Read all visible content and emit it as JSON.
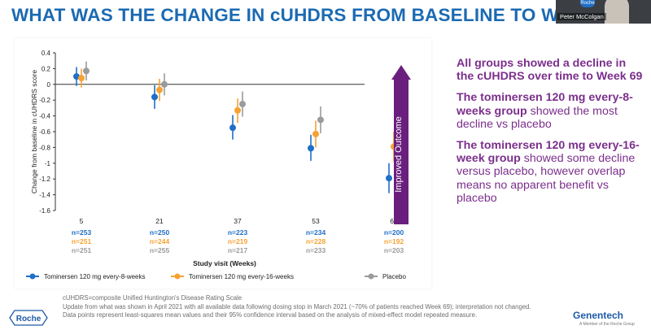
{
  "slide": {
    "title": "WHAT WAS THE CHANGE IN cUHDRS FROM BASELINE TO W"
  },
  "video": {
    "participant_name": "Peter McColgan",
    "badge": "Roche"
  },
  "chart_data": {
    "type": "scatter",
    "ylabel": "Change from baseline in cUHDRS score",
    "xlabel": "Study visit (Weeks)",
    "ylim": [
      -1.6,
      0.4
    ],
    "yticks": [
      "0.4",
      "0.2",
      "0",
      "-0.2",
      "-0.4",
      "-0.6",
      "-0.8",
      "-1",
      "-1.2",
      "-1.4",
      "-1.6"
    ],
    "categories": [
      "5",
      "21",
      "37",
      "53",
      "69"
    ],
    "series": [
      {
        "name": "Tominersen 120 mg every-8-weeks",
        "color": "#1f6fc7",
        "values": [
          0.1,
          -0.16,
          -0.55,
          -0.81,
          -1.19
        ],
        "ci_low": [
          -0.02,
          -0.31,
          -0.7,
          -0.97,
          -1.38
        ],
        "ci_high": [
          0.22,
          -0.01,
          -0.39,
          -0.64,
          -1.0
        ],
        "n": [
          "n=253",
          "n=250",
          "n=223",
          "n=234",
          "n=200"
        ]
      },
      {
        "name": "Tominersen 120 mg every-16-weeks",
        "color": "#f5a233",
        "values": [
          0.08,
          -0.07,
          -0.33,
          -0.63,
          -0.79
        ],
        "ci_low": [
          -0.04,
          -0.21,
          -0.49,
          -0.8,
          -0.98
        ],
        "ci_high": [
          0.2,
          0.07,
          -0.18,
          -0.46,
          -0.6
        ],
        "n": [
          "n=251",
          "n=244",
          "n=219",
          "n=228",
          "n=192"
        ]
      },
      {
        "name": "Placebo",
        "color": "#9b9b9b",
        "values": [
          0.17,
          0.0,
          -0.25,
          -0.45,
          -0.61
        ],
        "ci_low": [
          0.05,
          -0.14,
          -0.41,
          -0.62,
          -0.79
        ],
        "ci_high": [
          0.29,
          0.14,
          -0.09,
          -0.28,
          -0.43
        ],
        "n": [
          "n=251",
          "n=255",
          "n=217",
          "n=233",
          "n=203"
        ]
      }
    ],
    "arrow_label": "Improved Outcome",
    "grid": false,
    "legend_position": "bottom"
  },
  "bullets": [
    {
      "bold": "All groups showed a decline in the cUHDRS over time to Week 69",
      "rest": ""
    },
    {
      "bold": "The tominersen 120 mg every-8-weeks group",
      "rest": " showed the most decline vs placebo"
    },
    {
      "bold": "The tominersen 120 mg every-16-week group",
      "rest": " showed some decline versus placebo, however overlap means no apparent benefit vs placebo"
    }
  ],
  "footnotes": {
    "line1": "cUHDRS=composite Unified Huntington's Disease Rating Scale",
    "line2": "Update from what was shown in April 2021 with all available data following dosing stop in March 2021 (~70% of patients reached Week 69); interpretation not changed.",
    "line3": "Data points represent least-squares mean values and their 95% confidence interval based on the analysis of mixed-effect model repeated measure."
  },
  "logos": {
    "roche": "Roche",
    "genentech": "Genentech",
    "genentech_sub": "A Member of the Roche Group"
  }
}
